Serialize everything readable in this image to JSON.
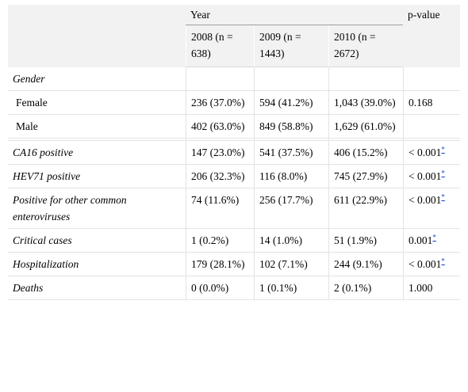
{
  "header": {
    "year_label": "Year",
    "pvalue_label": "p-value",
    "columns": [
      "2008 (n = 638)",
      "2009 (n = 1443)",
      "2010 (n = 2672)"
    ]
  },
  "rows": [
    {
      "label": "Gender",
      "italic": true,
      "values": [
        "",
        "",
        ""
      ],
      "p": ""
    },
    {
      "label": "Female",
      "italic": false,
      "values": [
        "236 (37.0%)",
        "594 (41.2%)",
        "1,043 (39.0%)"
      ],
      "p": "0.168"
    },
    {
      "label": "Male",
      "italic": false,
      "values": [
        "402 (63.0%)",
        "849 (58.8%)",
        "1,629 (61.0%)"
      ],
      "p": ""
    },
    {
      "label": "CA16 positive",
      "italic": true,
      "values": [
        "147 (23.0%)",
        "541 (37.5%)",
        "406 (15.2%)"
      ],
      "p": "< 0.001",
      "footnote": "*"
    },
    {
      "label": "HEV71 positive",
      "italic": true,
      "values": [
        "206 (32.3%)",
        "116 (8.0%)",
        "745 (27.9%)"
      ],
      "p": "< 0.001",
      "footnote": "*"
    },
    {
      "label": "Positive for other common enteroviruses",
      "italic": true,
      "values": [
        "74 (11.6%)",
        "256 (17.7%)",
        "611 (22.9%)"
      ],
      "p": "< 0.001",
      "footnote": "*"
    },
    {
      "label": "Critical cases",
      "italic": true,
      "values": [
        "1 (0.2%)",
        "14 (1.0%)",
        "51 (1.9%)"
      ],
      "p": "0.001",
      "footnote": "*"
    },
    {
      "label": "Hospitalization",
      "italic": true,
      "values": [
        "179 (28.1%)",
        "102 (7.1%)",
        "244 (9.1%)"
      ],
      "p": "< 0.001",
      "footnote": "*"
    },
    {
      "label": "Deaths",
      "italic": true,
      "values": [
        "0 (0.0%)",
        "1 (0.1%)",
        "2 (0.1%)"
      ],
      "p": "1.000"
    }
  ]
}
